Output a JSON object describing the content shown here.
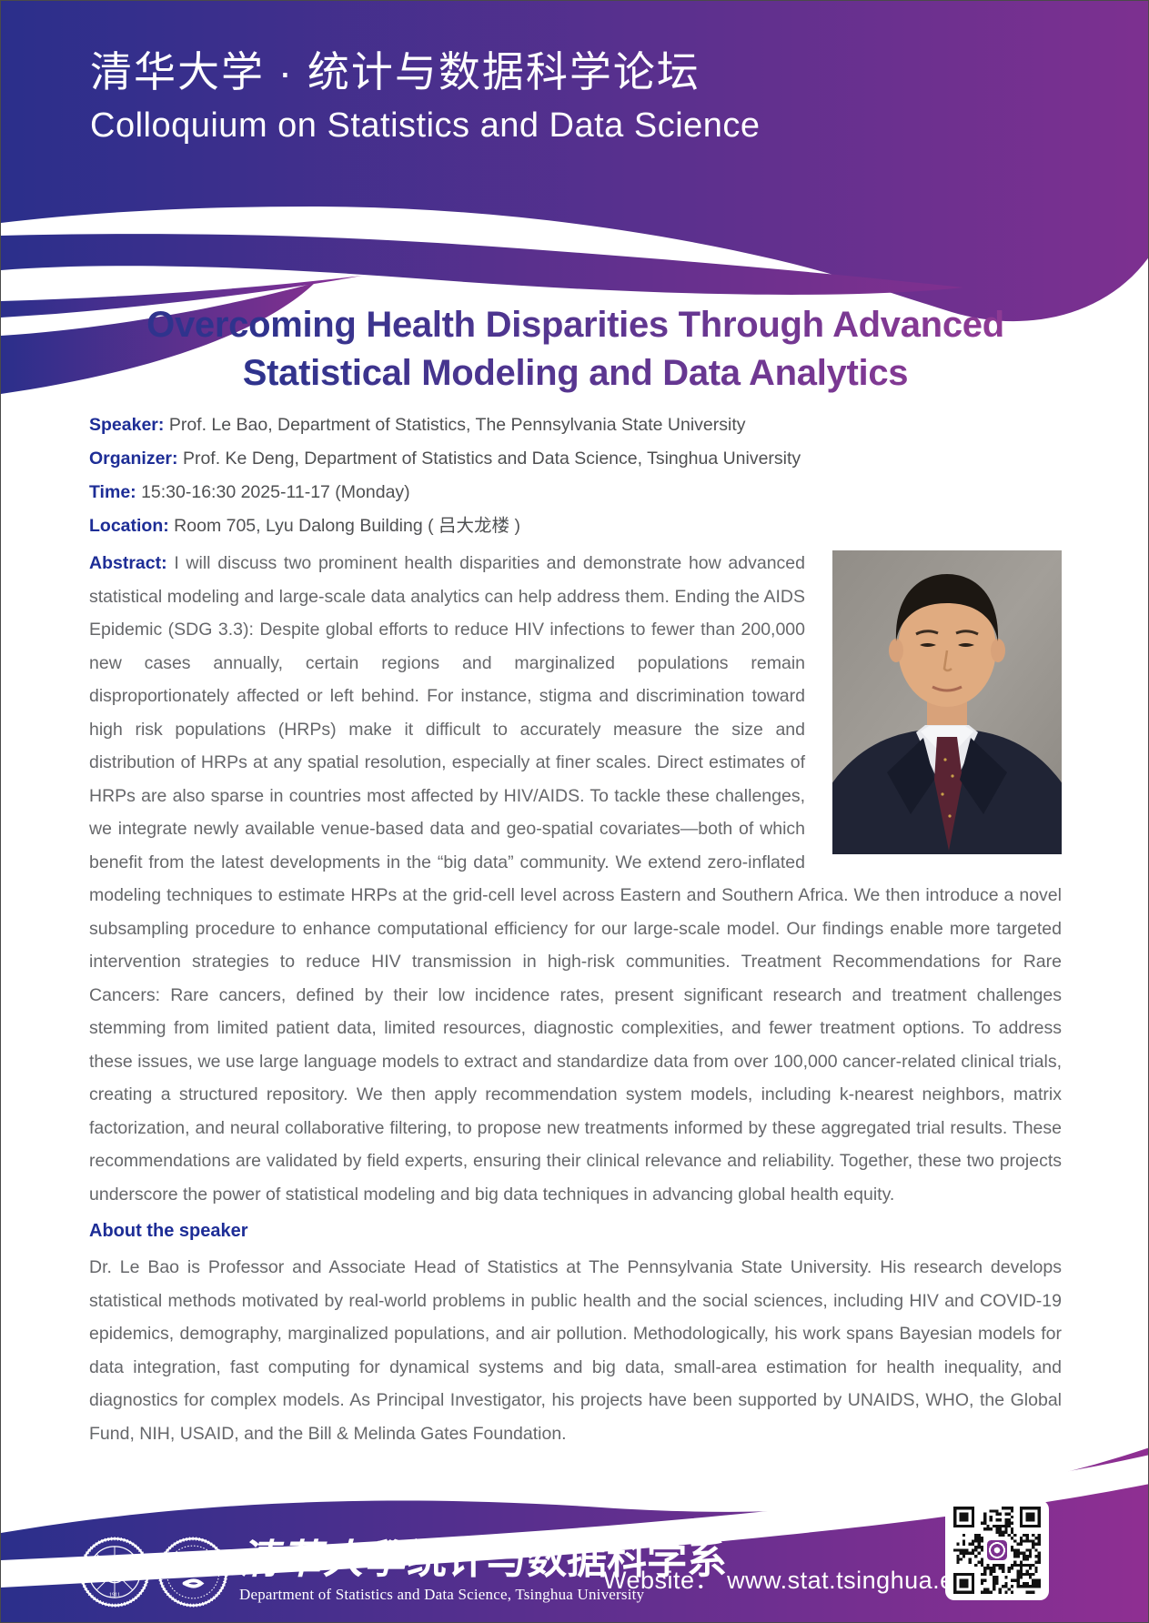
{
  "header": {
    "title_zh": "清华大学 · 统计与数据科学论坛",
    "title_en": "Colloquium on Statistics and Data Science"
  },
  "talk": {
    "title_line1": "Overcoming Health Disparities Through Advanced",
    "title_line2": "Statistical Modeling and Data Analytics",
    "meta": [
      {
        "label": "Speaker:",
        "value": "Prof. Le Bao, Department of Statistics, The Pennsylvania State University"
      },
      {
        "label": "Organizer:",
        "value": "Prof. Ke Deng, Department of Statistics and Data Science, Tsinghua University"
      },
      {
        "label": "Time:",
        "value": "15:30-16:30 2025-11-17 (Monday)"
      },
      {
        "label": "Location:",
        "value": "Room 705, Lyu Dalong Building ( 吕大龙楼 )"
      }
    ],
    "abstract_label": "Abstract:",
    "abstract": "I will discuss two prominent health disparities and demonstrate how advanced statistical modeling and large-scale data analytics can help address them. Ending the AIDS Epidemic (SDG 3.3): Despite global efforts to reduce HIV infections to fewer than 200,000 new cases annually, certain regions and marginalized populations remain disproportionately affected or left behind. For instance, stigma and discrimination toward high risk populations (HRPs) make it difficult to accurately measure the size and distribution of HRPs at any spatial resolution, especially at finer scales. Direct estimates of HRPs are also sparse in countries most affected by HIV/AIDS. To tackle these challenges, we integrate newly available venue-based data and geo-spatial covariates—both of which benefit from the latest developments in the “big data” community. We extend zero-inflated modeling techniques to estimate HRPs at the grid-cell level across Eastern and Southern Africa. We then introduce a novel subsampling procedure to enhance computational efficiency for our large-scale model. Our findings enable more targeted intervention strategies to reduce HIV transmission in high-risk communities. Treatment Recommendations for Rare Cancers: Rare cancers, defined by their low incidence rates, present significant research and treatment challenges stemming from limited patient data, limited resources, diagnostic complexities, and fewer treatment options. To address these issues, we use large language models to extract and standardize data from over 100,000 cancer-related clinical trials, creating a structured repository. We then apply recommendation system models, including k-nearest neighbors, matrix factorization, and neural collaborative filtering, to propose new treatments informed by these aggregated trial results. These recommendations are validated by field experts, ensuring their clinical relevance and reliability. Together, these two projects underscore the power of statistical modeling and big data techniques in advancing global health equity.",
    "about_heading": "About the speaker",
    "about": "Dr. Le Bao is Professor and Associate Head of Statistics at The Pennsylvania State University. His research develops statistical methods motivated by real-world problems in public health and the social sciences, including HIV and COVID-19 epidemics, demography, marginalized populations, and air pollution. Methodologically, his work spans Bayesian models for data integration, fast computing for dynamical systems and big data, small-area estimation for health inequality, and diagnostics for complex models. As Principal Investigator, his projects have been supported by UNAIDS, WHO, the Global Fund, NIH, USAID, and the Bill & Melinda Gates Foundation."
  },
  "footer": {
    "dept_zh_calligraphy": "清華大學",
    "dept_zh_modern": "统计与数据科学系",
    "dept_en": "Department of Statistics and Data Science, Tsinghua University",
    "website_label": "Website：",
    "website_url": "www.stat.tsinghua.edu.cn"
  },
  "colors": {
    "header_gradient_left": "#2b2f8b",
    "header_gradient_right": "#7d3090",
    "footer_gradient_right": "#8f2f92",
    "title_gradient_left": "#2f338d",
    "title_gradient_right": "#8d3a94",
    "label_blue": "#1d2d96",
    "body_text": "#66676a",
    "qr_logo_purple": "#7d3090"
  }
}
